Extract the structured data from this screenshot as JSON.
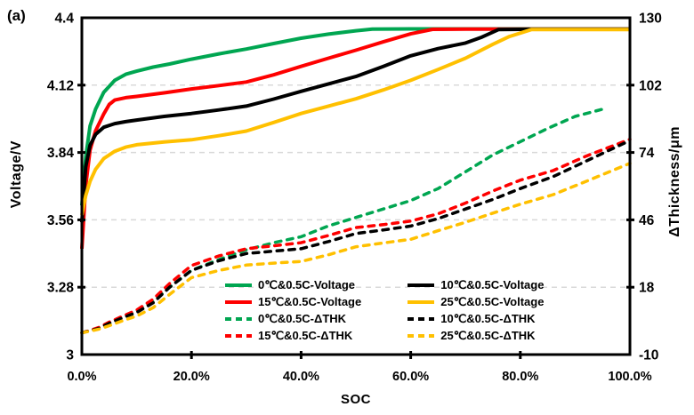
{
  "chart_data": {
    "type": "line",
    "panel_label": "(a)",
    "title": "",
    "grid": "horizontal-dashed",
    "gridline_color": "#d9d9d9",
    "axis_color": "#000000",
    "legend_position": "inside-bottom",
    "axes": {
      "x": {
        "title": "SOC",
        "tick_labels": [
          "0.0%",
          "20.0%",
          "40.0%",
          "60.0%",
          "80.0%",
          "100.0%"
        ],
        "tick_values": [
          0,
          20,
          40,
          60,
          80,
          100
        ],
        "range": [
          0,
          100
        ]
      },
      "y_left": {
        "title": "Voltage/V",
        "tick_labels": [
          "4.4",
          "4.12",
          "3.84",
          "3.56",
          "3.28",
          "3"
        ],
        "tick_values": [
          4.4,
          4.12,
          3.84,
          3.56,
          3.28,
          3
        ],
        "range": [
          3,
          4.4
        ]
      },
      "y_right": {
        "title": "ΔThickness/μm",
        "tick_labels": [
          "130",
          "102",
          "74",
          "46",
          "18",
          "-10"
        ],
        "tick_values": [
          130,
          102,
          74,
          46,
          18,
          -10
        ],
        "range": [
          -10,
          130
        ]
      }
    },
    "series": [
      {
        "name": "0℃&0.5C-Voltage",
        "axis": "left",
        "style": "solid",
        "color": "#00A651",
        "points": [
          [
            0,
            3.62
          ],
          [
            0.7,
            3.82
          ],
          [
            1.5,
            3.95
          ],
          [
            2.5,
            4.02
          ],
          [
            4,
            4.09
          ],
          [
            6,
            4.14
          ],
          [
            8,
            4.165
          ],
          [
            10,
            4.178
          ],
          [
            13,
            4.195
          ],
          [
            16,
            4.208
          ],
          [
            20,
            4.228
          ],
          [
            25,
            4.25
          ],
          [
            30,
            4.27
          ],
          [
            35,
            4.293
          ],
          [
            40,
            4.315
          ],
          [
            45,
            4.332
          ],
          [
            50,
            4.346
          ],
          [
            53,
            4.353
          ],
          [
            60,
            4.354
          ],
          [
            70,
            4.354
          ],
          [
            80,
            4.354
          ],
          [
            90,
            4.354
          ],
          [
            100,
            4.354
          ]
        ]
      },
      {
        "name": "15℃&0.5C-Voltage",
        "axis": "left",
        "style": "solid",
        "color": "#FE0000",
        "points": [
          [
            0,
            3.44
          ],
          [
            0.7,
            3.7
          ],
          [
            1.5,
            3.85
          ],
          [
            2.5,
            3.93
          ],
          [
            4,
            4.0
          ],
          [
            5,
            4.04
          ],
          [
            6,
            4.058
          ],
          [
            8,
            4.068
          ],
          [
            10,
            4.073
          ],
          [
            15,
            4.088
          ],
          [
            20,
            4.104
          ],
          [
            25,
            4.118
          ],
          [
            30,
            4.133
          ],
          [
            35,
            4.163
          ],
          [
            40,
            4.198
          ],
          [
            45,
            4.232
          ],
          [
            50,
            4.265
          ],
          [
            55,
            4.3
          ],
          [
            60,
            4.333
          ],
          [
            64,
            4.352
          ],
          [
            70,
            4.353
          ],
          [
            80,
            4.353
          ],
          [
            90,
            4.353
          ],
          [
            100,
            4.353
          ]
        ]
      },
      {
        "name": "10℃&0.5C-Voltage",
        "axis": "left",
        "style": "solid",
        "color": "#000000",
        "points": [
          [
            0,
            3.55
          ],
          [
            0.7,
            3.78
          ],
          [
            1.5,
            3.87
          ],
          [
            2.5,
            3.915
          ],
          [
            4,
            3.945
          ],
          [
            6,
            3.96
          ],
          [
            8,
            3.968
          ],
          [
            10,
            3.975
          ],
          [
            15,
            3.99
          ],
          [
            20,
            4.002
          ],
          [
            25,
            4.017
          ],
          [
            30,
            4.033
          ],
          [
            35,
            4.062
          ],
          [
            40,
            4.094
          ],
          [
            45,
            4.125
          ],
          [
            50,
            4.156
          ],
          [
            55,
            4.198
          ],
          [
            60,
            4.242
          ],
          [
            65,
            4.272
          ],
          [
            70,
            4.295
          ],
          [
            73,
            4.32
          ],
          [
            76,
            4.351
          ],
          [
            80,
            4.352
          ],
          [
            90,
            4.352
          ],
          [
            100,
            4.352
          ]
        ]
      },
      {
        "name": "25℃&0.5C-Voltage",
        "axis": "left",
        "style": "solid",
        "color": "#FFC000",
        "points": [
          [
            0,
            3.58
          ],
          [
            0.7,
            3.66
          ],
          [
            1.5,
            3.72
          ],
          [
            2.5,
            3.77
          ],
          [
            4,
            3.815
          ],
          [
            6,
            3.845
          ],
          [
            8,
            3.862
          ],
          [
            10,
            3.872
          ],
          [
            15,
            3.884
          ],
          [
            20,
            3.893
          ],
          [
            25,
            3.91
          ],
          [
            30,
            3.929
          ],
          [
            35,
            3.965
          ],
          [
            40,
            4.002
          ],
          [
            45,
            4.033
          ],
          [
            50,
            4.063
          ],
          [
            55,
            4.1
          ],
          [
            60,
            4.14
          ],
          [
            65,
            4.185
          ],
          [
            70,
            4.232
          ],
          [
            75,
            4.29
          ],
          [
            78,
            4.322
          ],
          [
            82,
            4.351
          ],
          [
            90,
            4.351
          ],
          [
            100,
            4.351
          ]
        ]
      },
      {
        "name": "0℃&0.5C-ΔTHK",
        "axis": "right",
        "style": "dashed",
        "color": "#00A651",
        "points": [
          [
            0,
            -1
          ],
          [
            3,
            1
          ],
          [
            5,
            3
          ],
          [
            8,
            6
          ],
          [
            10,
            8
          ],
          [
            13,
            12
          ],
          [
            16,
            18
          ],
          [
            20,
            25
          ],
          [
            25,
            29.5
          ],
          [
            30,
            33.5
          ],
          [
            35,
            36.5
          ],
          [
            40,
            39
          ],
          [
            45,
            43.5
          ],
          [
            50,
            47
          ],
          [
            55,
            50.5
          ],
          [
            60,
            54
          ],
          [
            65,
            59
          ],
          [
            70,
            66
          ],
          [
            75,
            73
          ],
          [
            80,
            78.5
          ],
          [
            85,
            84
          ],
          [
            90,
            89
          ],
          [
            95,
            92
          ]
        ]
      },
      {
        "name": "15℃&0.5C-ΔTHK",
        "axis": "right",
        "style": "dashed",
        "color": "#FE0000",
        "points": [
          [
            0,
            -1
          ],
          [
            3,
            1.2
          ],
          [
            5,
            3.5
          ],
          [
            8,
            6.5
          ],
          [
            10,
            8.5
          ],
          [
            13,
            13
          ],
          [
            16,
            19.5
          ],
          [
            20,
            27
          ],
          [
            25,
            31
          ],
          [
            30,
            34
          ],
          [
            35,
            35.2
          ],
          [
            40,
            36.5
          ],
          [
            45,
            39.5
          ],
          [
            50,
            42.8
          ],
          [
            55,
            44
          ],
          [
            60,
            45.5
          ],
          [
            65,
            48.5
          ],
          [
            70,
            53
          ],
          [
            75,
            58
          ],
          [
            80,
            62.5
          ],
          [
            86,
            66.5
          ],
          [
            92,
            72.5
          ],
          [
            100,
            79.5
          ]
        ]
      },
      {
        "name": "10℃&0.5C-ΔTHK",
        "axis": "right",
        "style": "dashed",
        "color": "#000000",
        "points": [
          [
            0,
            -1
          ],
          [
            3,
            0.8
          ],
          [
            5,
            3
          ],
          [
            8,
            5.8
          ],
          [
            10,
            7.5
          ],
          [
            13,
            11.5
          ],
          [
            16,
            18
          ],
          [
            20,
            25
          ],
          [
            25,
            29
          ],
          [
            30,
            32
          ],
          [
            35,
            33
          ],
          [
            40,
            34
          ],
          [
            45,
            37
          ],
          [
            50,
            40.3
          ],
          [
            55,
            41.8
          ],
          [
            60,
            43.4
          ],
          [
            65,
            46.5
          ],
          [
            70,
            50.5
          ],
          [
            75,
            54.5
          ],
          [
            80,
            59
          ],
          [
            86,
            64
          ],
          [
            92,
            70.4
          ],
          [
            100,
            79
          ]
        ]
      },
      {
        "name": "25℃&0.5C-ΔTHK",
        "axis": "right",
        "style": "dashed",
        "color": "#FFC000",
        "points": [
          [
            0,
            -1
          ],
          [
            3,
            0.5
          ],
          [
            5,
            2
          ],
          [
            8,
            4.5
          ],
          [
            10,
            6
          ],
          [
            13,
            9.5
          ],
          [
            16,
            15
          ],
          [
            20,
            22
          ],
          [
            25,
            25
          ],
          [
            30,
            27.2
          ],
          [
            35,
            28
          ],
          [
            40,
            28.7
          ],
          [
            45,
            31.5
          ],
          [
            50,
            34.8
          ],
          [
            55,
            36.4
          ],
          [
            60,
            37.9
          ],
          [
            65,
            41.5
          ],
          [
            70,
            45
          ],
          [
            75,
            48.8
          ],
          [
            80,
            52.5
          ],
          [
            86,
            56.5
          ],
          [
            92,
            62
          ],
          [
            100,
            69.5
          ]
        ]
      }
    ],
    "legend": {
      "columns": [
        [
          "0℃&0.5C-Voltage",
          "15℃&0.5C-Voltage",
          "0℃&0.5C-ΔTHK",
          "15℃&0.5C-ΔTHK"
        ],
        [
          "10℃&0.5C-Voltage",
          "25℃&0.5C-Voltage",
          "10℃&0.5C-ΔTHK",
          "25℃&0.5C-ΔTHK"
        ]
      ]
    }
  }
}
